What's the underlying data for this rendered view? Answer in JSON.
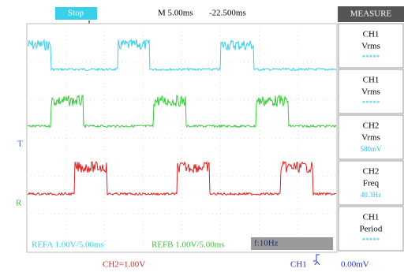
{
  "status": "Stop",
  "timebase": "M 5.00ms",
  "trigger_position": "-22.500ms",
  "menu": {
    "title": "MEASURE",
    "items": [
      {
        "source": "CH1",
        "measure": "Vrms",
        "value": "*****"
      },
      {
        "source": "CH1",
        "measure": "Vrms",
        "value": "*****"
      },
      {
        "source": "CH2",
        "measure": "Vrms",
        "value": "580mV"
      },
      {
        "source": "CH2",
        "measure": "Freq",
        "value": "40.3Hz"
      },
      {
        "source": "CH1",
        "measure": "Period",
        "value": "*****"
      }
    ]
  },
  "markers": {
    "trigger": "T",
    "reference": "R"
  },
  "references": [
    "REFA 1.00V/5.00ms",
    "REFB 1.00V/5.00ms"
  ],
  "frequency": "f:10Hz",
  "footer": {
    "ch2_scale": "CH2=1.00V",
    "trigger_source": "CH1",
    "trigger_level": "0.00mV"
  }
}
